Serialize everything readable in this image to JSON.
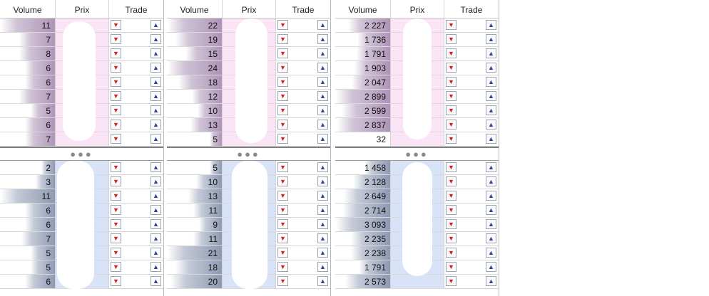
{
  "headers": {
    "volume": "Volume",
    "prix": "Prix",
    "trade": "Trade"
  },
  "separator_glyph": "●●●",
  "icons": {
    "sell": "chevron-down-icon",
    "buy": "chevron-up-icon"
  },
  "colors": {
    "ask_price_bg": "#fae4f6",
    "bid_price_bg": "#d8e3f8",
    "ask_volume_bar": "#ae94b8",
    "bid_volume_bar": "#8e99b3",
    "sell_arrow": "#d12020",
    "buy_arrow": "#2b3f9e"
  },
  "ladders": [
    {
      "ask": [
        {
          "volume": "11",
          "level": 1.0
        },
        {
          "volume": "7",
          "level": 0.66
        },
        {
          "volume": "8",
          "level": 0.66
        },
        {
          "volume": "6",
          "level": 0.55
        },
        {
          "volume": "6",
          "level": 0.55
        },
        {
          "volume": "7",
          "level": 0.66
        },
        {
          "volume": "5",
          "level": 0.45
        },
        {
          "volume": "6",
          "level": 0.55
        },
        {
          "volume": "7",
          "level": 0.55
        }
      ],
      "bid": [
        {
          "volume": "2",
          "level": 0.25
        },
        {
          "volume": "3",
          "level": 0.35
        },
        {
          "volume": "11",
          "level": 1.0
        },
        {
          "volume": "6",
          "level": 0.55
        },
        {
          "volume": "6",
          "level": 0.55
        },
        {
          "volume": "7",
          "level": 0.62
        },
        {
          "volume": "5",
          "level": 0.45
        },
        {
          "volume": "5",
          "level": 0.45
        },
        {
          "volume": "6",
          "level": 0.55
        }
      ]
    },
    {
      "ask": [
        {
          "volume": "22",
          "level": 1.0
        },
        {
          "volume": "19",
          "level": 0.85
        },
        {
          "volume": "15",
          "level": 0.67
        },
        {
          "volume": "24",
          "level": 1.0
        },
        {
          "volume": "18",
          "level": 0.8
        },
        {
          "volume": "12",
          "level": 0.55
        },
        {
          "volume": "10",
          "level": 0.45
        },
        {
          "volume": "13",
          "level": 0.58
        },
        {
          "volume": "5",
          "level": 0.22
        }
      ],
      "bid": [
        {
          "volume": "5",
          "level": 0.23
        },
        {
          "volume": "10",
          "level": 0.47
        },
        {
          "volume": "13",
          "level": 0.62
        },
        {
          "volume": "11",
          "level": 0.52
        },
        {
          "volume": "9",
          "level": 0.42
        },
        {
          "volume": "11",
          "level": 0.52
        },
        {
          "volume": "21",
          "level": 1.0
        },
        {
          "volume": "18",
          "level": 0.86
        },
        {
          "volume": "20",
          "level": 0.95
        }
      ]
    },
    {
      "ask": [
        {
          "volume": "2 227",
          "level": 0.77
        },
        {
          "volume": "1 736",
          "level": 0.6
        },
        {
          "volume": "1 791",
          "level": 0.62
        },
        {
          "volume": "1 903",
          "level": 0.66
        },
        {
          "volume": "2 047",
          "level": 0.71
        },
        {
          "volume": "2 899",
          "level": 1.0
        },
        {
          "volume": "2 599",
          "level": 0.9
        },
        {
          "volume": "2 837",
          "level": 0.98
        },
        {
          "volume": "32",
          "level": 0.0
        }
      ],
      "bid": [
        {
          "volume": "1 458",
          "level": 0.47
        },
        {
          "volume": "2 128",
          "level": 0.69
        },
        {
          "volume": "2 649",
          "level": 0.86
        },
        {
          "volume": "2 714",
          "level": 0.88
        },
        {
          "volume": "3 093",
          "level": 1.0
        },
        {
          "volume": "2 235",
          "level": 0.72
        },
        {
          "volume": "2 238",
          "level": 0.72
        },
        {
          "volume": "1 791",
          "level": 0.58
        },
        {
          "volume": "2 573",
          "level": 0.83
        }
      ]
    }
  ]
}
